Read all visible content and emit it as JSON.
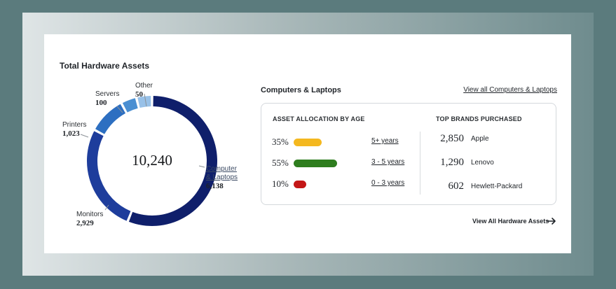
{
  "card": {
    "title": "Total Hardware Assets"
  },
  "chart_data": {
    "type": "pie",
    "total_label": "10,240",
    "slices": [
      {
        "label": "Computer & Laptops",
        "value": 6138,
        "value_label": "6,138",
        "color": "#0f1f6b"
      },
      {
        "label": "Monitors",
        "value": 2929,
        "value_label": "2,929",
        "color": "#1e3d9c"
      },
      {
        "label": "Printers",
        "value": 1023,
        "value_label": "1,023",
        "color": "#2d6fc1"
      },
      {
        "label": "Servers",
        "value": 100,
        "value_label": "100",
        "color": "#4a8fd2"
      },
      {
        "label": "Other",
        "value": 50,
        "value_label": "50",
        "color": "#98c1e8"
      }
    ]
  },
  "labels": {
    "other": {
      "name": "Other",
      "num": "50"
    },
    "servers": {
      "name": "Servers",
      "num": "100"
    },
    "printers": {
      "name": "Printers",
      "num": "1,023"
    },
    "monitors": {
      "name": "Monitors",
      "num": "2,929"
    },
    "computers": {
      "name1": "Computer",
      "name2": "& Laptops",
      "num": "6,138"
    }
  },
  "section": {
    "title": "Computers & Laptops",
    "view_all_link": "View all Computers & Laptops"
  },
  "allocation": {
    "heading": "ASSET ALLOCATION BY AGE",
    "rows": [
      {
        "percent": "35%",
        "fraction": 0.35,
        "color": "#f4b81f",
        "range": "5+ years"
      },
      {
        "percent": "55%",
        "fraction": 0.55,
        "color": "#2e7d1e",
        "range": "3 - 5 years"
      },
      {
        "percent": "10%",
        "fraction": 0.1,
        "color": "#c41717",
        "range": "0 - 3 years"
      }
    ]
  },
  "brands": {
    "heading": "TOP BRANDS PURCHASED",
    "rows": [
      {
        "count": "2,850",
        "name": "Apple"
      },
      {
        "count": "1,290",
        "name": "Lenovo"
      },
      {
        "count": "602",
        "name": "Hewlett-Packard"
      }
    ]
  },
  "footer": {
    "view_all_assets": "View All Hardware Assets",
    "arrow_icon": "arrow-right-icon"
  }
}
